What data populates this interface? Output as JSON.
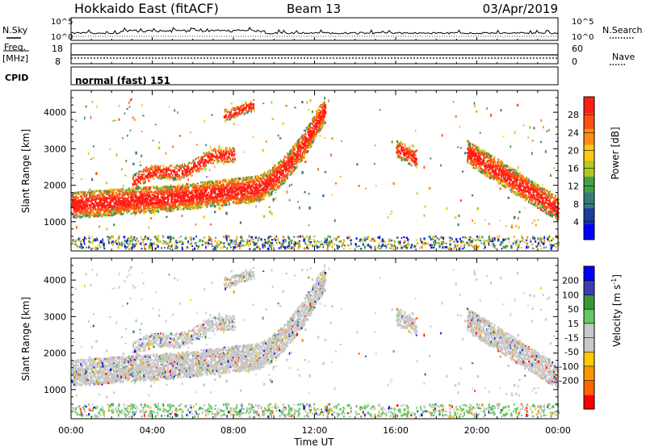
{
  "header": {
    "site": "Hokkaido East (fitACF)",
    "beam": "Beam 13",
    "date": "03/Apr/2019"
  },
  "noise_panel": {
    "left_label": "N.Sky",
    "right_label": "N.Search",
    "ticks": [
      "10^5",
      "10^0"
    ]
  },
  "freq_panel": {
    "label_top": "Freq.",
    "label_unit": "[MHz]",
    "left_ticks": [
      "18",
      "8"
    ],
    "right_ticks": [
      "60",
      "0"
    ],
    "right_label": "Nave"
  },
  "cpid_panel": {
    "label": "CPID",
    "text": "normal (fast) 151"
  },
  "colors": {
    "power": [
      "#0000ff",
      "#1c3c9c",
      "#3a7a7a",
      "#46a046",
      "#b4c81e",
      "#ffc814",
      "#ff8c14",
      "#ff5014",
      "#ff1e14"
    ],
    "velocity": [
      "#ff0000",
      "#ff6400",
      "#ff9600",
      "#ffc800",
      "#c8c8c8",
      "#c8c8c8",
      "#64c864",
      "#3c963c",
      "#3c3cb4",
      "#0000ff"
    ]
  },
  "chart_data": [
    {
      "type": "heatmap",
      "parameter": "power",
      "ylabel": "Slant Range [km]",
      "yticks": [
        "1000",
        "2000",
        "3000",
        "4000"
      ],
      "ylim": [
        200,
        4600
      ],
      "xlim": [
        0,
        24
      ],
      "colorbar_label": "Power [dB]",
      "colorbar_ticks": [
        "4",
        "8",
        "12",
        "16",
        "20",
        "24",
        "28"
      ],
      "colorbar_range": [
        0,
        32
      ]
    },
    {
      "type": "heatmap",
      "parameter": "velocity",
      "ylabel": "Slant Range [km]",
      "yticks": [
        "1000",
        "2000",
        "3000",
        "4000"
      ],
      "ylim": [
        200,
        4600
      ],
      "xlim": [
        0,
        24
      ],
      "colorbar_label": "Velocity [m s",
      "colorbar_label_sup": "-1",
      "colorbar_label_end": "]",
      "colorbar_ticks": [
        "200",
        "100",
        "50",
        "15",
        "-15",
        "-50",
        "-100",
        "-200"
      ],
      "xticks": [
        "00:00",
        "04:00",
        "08:00",
        "12:00",
        "16:00",
        "20:00",
        "00:00"
      ],
      "xlabel": "Time UT"
    }
  ]
}
